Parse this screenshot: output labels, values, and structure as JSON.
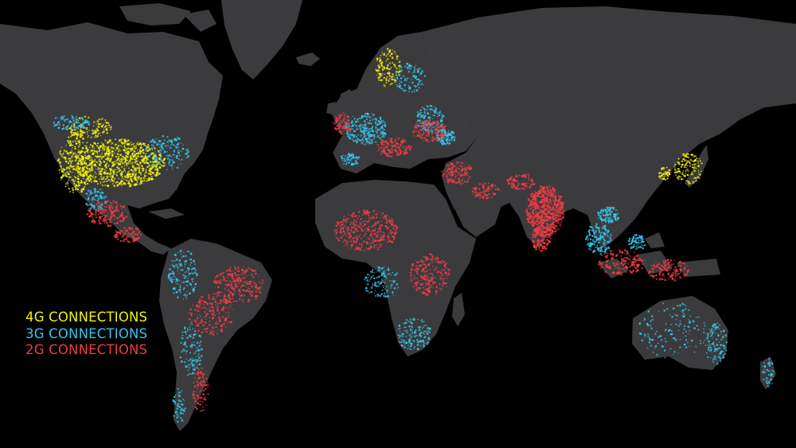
{
  "background_color": "#000000",
  "land_color": "#3b3b3d",
  "legend": {
    "items": [
      {
        "label": "4G CONNECTIONS",
        "color": "#f2f20a"
      },
      {
        "label": "3G CONNECTIONS",
        "color": "#35c6ea"
      },
      {
        "label": "2G CONNECTIONS",
        "color": "#ee3c46"
      }
    ]
  }
}
